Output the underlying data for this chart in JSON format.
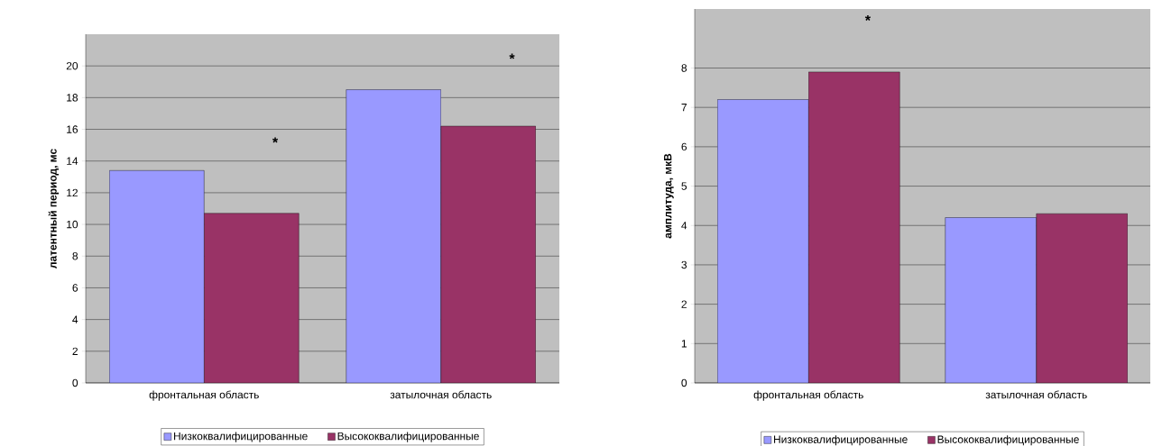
{
  "chart_data": [
    {
      "type": "bar",
      "ylabel": "латентный период, мс",
      "categories": [
        "фронтальная область",
        "затылочная область"
      ],
      "series": [
        {
          "name": "Низкоквалифицированные",
          "color": "#9999ff",
          "values": [
            13.4,
            18.5
          ]
        },
        {
          "name": "Высококвалифицированные",
          "color": "#993366",
          "values": [
            10.7,
            16.2
          ]
        }
      ],
      "ylim": [
        0,
        22
      ],
      "yticks": [
        0,
        2,
        4,
        6,
        8,
        10,
        12,
        14,
        16,
        18,
        20
      ],
      "grid": "y",
      "legend": "bottom",
      "annotations": [
        "*",
        "*"
      ]
    },
    {
      "type": "bar",
      "ylabel": "амплитуда, мкВ",
      "categories": [
        "фронтальная область",
        "затылочная область"
      ],
      "series": [
        {
          "name": "Низкоквалифицированные",
          "color": "#9999ff",
          "values": [
            7.2,
            4.2
          ]
        },
        {
          "name": "Высококвалифицированные",
          "color": "#993366",
          "values": [
            7.9,
            4.3
          ]
        }
      ],
      "ylim": [
        0,
        9.5
      ],
      "yticks": [
        0,
        1,
        2,
        3,
        4,
        5,
        6,
        7,
        8
      ],
      "grid": "y",
      "legend": "bottom",
      "annotations": [
        "*"
      ]
    }
  ]
}
